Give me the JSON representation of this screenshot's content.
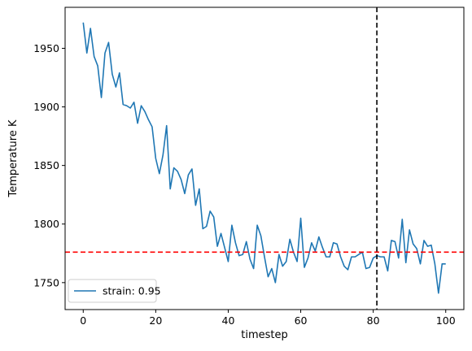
{
  "chart_data": {
    "type": "line",
    "title": "",
    "xlabel": "timestep",
    "ylabel": "Temperature K",
    "xlim": [
      -5,
      105
    ],
    "ylim": [
      1727,
      1985
    ],
    "x_ticks": [
      0,
      20,
      40,
      60,
      80,
      100
    ],
    "y_ticks": [
      1750,
      1800,
      1850,
      1900,
      1950
    ],
    "grid": false,
    "legend_position": "lower-left",
    "series": [
      {
        "name": "strain: 0.95",
        "color": "#1f77b4",
        "x": [
          0,
          1,
          2,
          3,
          4,
          5,
          6,
          7,
          8,
          9,
          10,
          11,
          12,
          13,
          14,
          15,
          16,
          17,
          18,
          19,
          20,
          21,
          22,
          23,
          24,
          25,
          26,
          27,
          28,
          29,
          30,
          31,
          32,
          33,
          34,
          35,
          36,
          37,
          38,
          39,
          40,
          41,
          42,
          43,
          44,
          45,
          46,
          47,
          48,
          49,
          50,
          51,
          52,
          53,
          54,
          55,
          56,
          57,
          58,
          59,
          60,
          61,
          62,
          63,
          64,
          65,
          66,
          67,
          68,
          69,
          70,
          71,
          72,
          73,
          74,
          75,
          76,
          77,
          78,
          79,
          80,
          81,
          82,
          83,
          84,
          85,
          86,
          87,
          88,
          89,
          90,
          91,
          92,
          93,
          94,
          95,
          96,
          97,
          98,
          99,
          100
        ],
        "values": [
          1972,
          1946,
          1967,
          1943,
          1935,
          1908,
          1946,
          1955,
          1928,
          1917,
          1929,
          1902,
          1901,
          1899,
          1904,
          1886,
          1901,
          1896,
          1889,
          1883,
          1856,
          1843,
          1859,
          1884,
          1830,
          1848,
          1845,
          1838,
          1826,
          1842,
          1847,
          1816,
          1830,
          1796,
          1798,
          1811,
          1806,
          1781,
          1792,
          1780,
          1768,
          1799,
          1784,
          1773,
          1774,
          1785,
          1770,
          1762,
          1799,
          1790,
          1772,
          1755,
          1762,
          1750,
          1774,
          1764,
          1768,
          1787,
          1776,
          1768,
          1805,
          1763,
          1771,
          1784,
          1777,
          1789,
          1780,
          1772,
          1772,
          1784,
          1783,
          1772,
          1764,
          1761,
          1772,
          1772,
          1774,
          1776,
          1762,
          1763,
          1771,
          1773,
          1772,
          1772,
          1760,
          1786,
          1785,
          1771,
          1804,
          1767,
          1795,
          1783,
          1779,
          1766,
          1786,
          1781,
          1782,
          1766,
          1741,
          1766,
          1766
        ]
      }
    ],
    "reference_lines": [
      {
        "orientation": "horizontal",
        "value": 1776,
        "color": "#ff0000",
        "style": "dashed"
      },
      {
        "orientation": "vertical",
        "value": 81,
        "color": "#000000",
        "style": "dashed"
      }
    ]
  }
}
